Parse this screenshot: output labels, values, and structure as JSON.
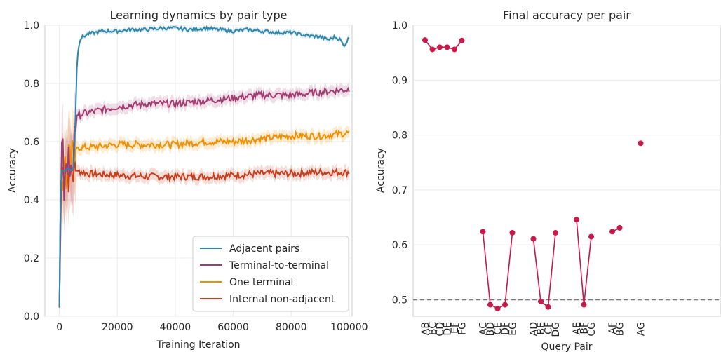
{
  "chart_data": [
    {
      "type": "line",
      "title": "Learning dynamics by pair type",
      "xlabel": "Training Iteration",
      "ylabel": "Accuracy",
      "xlim": [
        -5000,
        101000
      ],
      "ylim": [
        0.0,
        1.0
      ],
      "xticks": [
        0,
        20000,
        40000,
        60000,
        80000,
        100000
      ],
      "xtick_labels": [
        "0",
        "20000",
        "40000",
        "60000",
        "80000",
        "100000"
      ],
      "yticks": [
        0.0,
        0.2,
        0.4,
        0.6,
        0.8,
        1.0
      ],
      "ytick_labels": [
        "0.0",
        "0.2",
        "0.4",
        "0.6",
        "0.8",
        "1.0"
      ],
      "grid": true,
      "legend_position": "lower right",
      "series": [
        {
          "name": "Adjacent pairs",
          "color": "#2e86ab",
          "x": [
            0,
            500,
            1000,
            2000,
            3000,
            4000,
            5000,
            5600,
            6000,
            6500,
            7000,
            8000,
            10000,
            15000,
            20000,
            25000,
            30000,
            35000,
            40000,
            45000,
            50000,
            55000,
            60000,
            65000,
            70000,
            75000,
            80000,
            85000,
            90000,
            93000,
            95000,
            97000,
            98000,
            99000,
            100000
          ],
          "y": [
            0.03,
            0.5,
            0.5,
            0.5,
            0.51,
            0.5,
            0.51,
            0.7,
            0.85,
            0.92,
            0.95,
            0.96,
            0.97,
            0.98,
            0.98,
            0.985,
            0.985,
            0.99,
            0.99,
            0.985,
            0.99,
            0.985,
            0.98,
            0.985,
            0.98,
            0.975,
            0.975,
            0.965,
            0.96,
            0.95,
            0.96,
            0.95,
            0.93,
            0.94,
            0.96
          ]
        },
        {
          "name": "Terminal-to-terminal",
          "color": "#a23b72",
          "x": [
            0,
            500,
            1000,
            1500,
            2000,
            2500,
            3000,
            3500,
            4000,
            5000,
            5500,
            6000,
            10000,
            20000,
            30000,
            40000,
            50000,
            60000,
            70000,
            80000,
            90000,
            100000
          ],
          "y": [
            0.05,
            0.35,
            0.62,
            0.42,
            0.55,
            0.48,
            0.55,
            0.5,
            0.54,
            0.55,
            0.62,
            0.69,
            0.7,
            0.72,
            0.73,
            0.73,
            0.74,
            0.75,
            0.76,
            0.76,
            0.77,
            0.78
          ]
        },
        {
          "name": "One terminal",
          "color": "#f18f01",
          "x": [
            0,
            500,
            1000,
            1500,
            2000,
            2500,
            3000,
            3500,
            4000,
            5000,
            5500,
            6000,
            10000,
            20000,
            30000,
            40000,
            50000,
            60000,
            70000,
            80000,
            90000,
            100000
          ],
          "y": [
            0.04,
            0.48,
            0.5,
            0.45,
            0.55,
            0.47,
            0.53,
            0.5,
            0.52,
            0.53,
            0.57,
            0.58,
            0.58,
            0.59,
            0.59,
            0.59,
            0.6,
            0.6,
            0.61,
            0.62,
            0.62,
            0.63
          ]
        },
        {
          "name": "Internal non-adjacent",
          "color": "#c73e1d",
          "x": [
            0,
            500,
            1000,
            2000,
            4000,
            6000,
            10000,
            20000,
            30000,
            40000,
            50000,
            60000,
            70000,
            80000,
            90000,
            100000
          ],
          "y": [
            0.03,
            0.5,
            0.5,
            0.505,
            0.5,
            0.5,
            0.49,
            0.485,
            0.48,
            0.48,
            0.48,
            0.485,
            0.49,
            0.49,
            0.495,
            0.495
          ]
        }
      ]
    },
    {
      "type": "line",
      "title": "Final accuracy per pair",
      "xlabel": "Query Pair",
      "ylabel": "Accuracy",
      "ylim": [
        0.47,
        1.0
      ],
      "yticks": [
        0.5,
        0.6,
        0.7,
        0.8,
        0.9,
        1.0
      ],
      "ytick_labels": [
        "0.5",
        "0.6",
        "0.7",
        "0.8",
        "0.9",
        "1.0"
      ],
      "grid": true,
      "reference_line": 0.5,
      "color": "#c9184a",
      "groups": [
        {
          "pairs": [
            "AB",
            "BC",
            "CD",
            "DE",
            "EF",
            "FG"
          ],
          "values": [
            0.973,
            0.956,
            0.96,
            0.96,
            0.956,
            0.972
          ]
        },
        {
          "pairs": [
            "AC",
            "BD",
            "CE",
            "DF",
            "EG"
          ],
          "values": [
            0.624,
            0.491,
            0.484,
            0.491,
            0.622
          ]
        },
        {
          "pairs": [
            "AD",
            "BE",
            "CF",
            "DG"
          ],
          "values": [
            0.611,
            0.497,
            0.487,
            0.622
          ]
        },
        {
          "pairs": [
            "AE",
            "BF",
            "CG"
          ],
          "values": [
            0.646,
            0.491,
            0.615
          ]
        },
        {
          "pairs": [
            "AF",
            "BG"
          ],
          "values": [
            0.624,
            0.631
          ]
        },
        {
          "pairs": [
            "AG"
          ],
          "values": [
            0.785
          ]
        }
      ]
    }
  ]
}
